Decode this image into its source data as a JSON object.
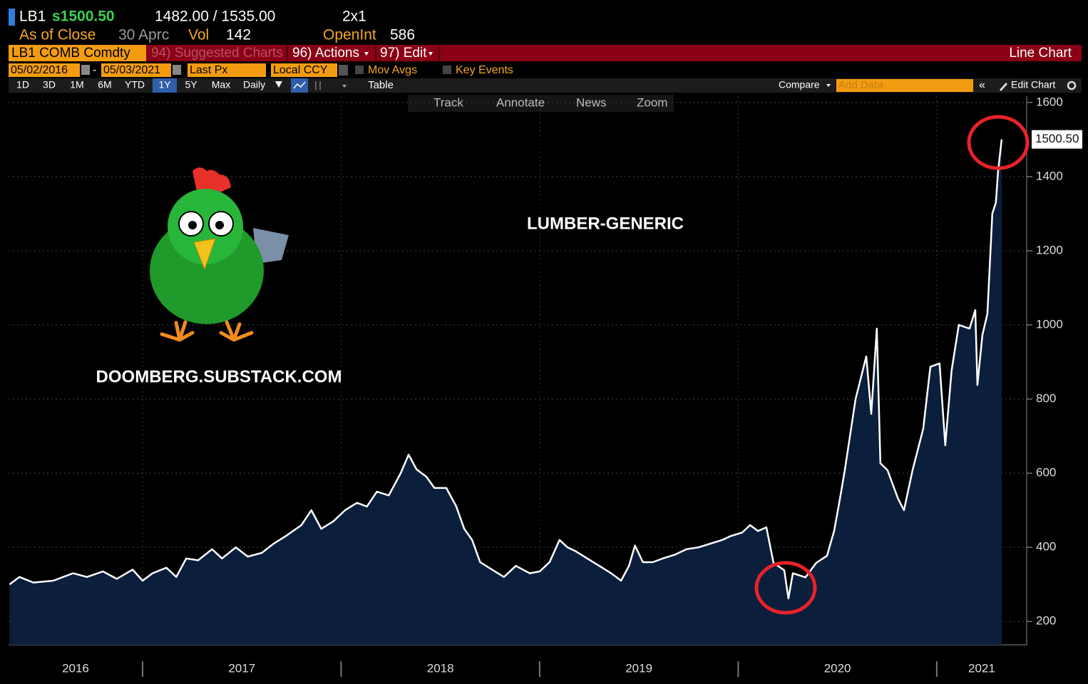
{
  "header": {
    "ticker": "LB1",
    "last": "s1500.50",
    "bid_ask": "1482.00 / 1535.00",
    "size": "2x1",
    "as_of": "As of Close",
    "date": "30 Aprc",
    "vol_label": "Vol",
    "vol": "142",
    "oi_label": "OpenInt",
    "oi": "586"
  },
  "menu": {
    "security": "LB1 COMB Comdty",
    "suggested": "94) Suggested Charts",
    "actions": "96) Actions",
    "edit": "97) Edit",
    "chart_type": "Line Chart"
  },
  "controls": {
    "start": "05/02/2016",
    "end": "05/03/2021",
    "field": "Last Px",
    "currency": "Local CCY",
    "mov_avgs": "Mov Avgs",
    "key_events": "Key Events"
  },
  "toolbar": {
    "periods": [
      "1D",
      "3D",
      "1M",
      "6M",
      "YTD",
      "1Y",
      "5Y",
      "Max"
    ],
    "frequency": "Daily",
    "table": "Table",
    "compare": "Compare",
    "add_data": "Add Data",
    "edit_chart": "Edit Chart"
  },
  "chart_tools": [
    "Track",
    "Annotate",
    "News",
    "Zoom"
  ],
  "chart_data": {
    "type": "area",
    "title": "LUMBER-GENERIC",
    "annotation": "DOOMBERG.SUBSTACK.COM",
    "x": [
      2016.33,
      2016.38,
      2016.45,
      2016.55,
      2016.65,
      2016.72,
      2016.8,
      2016.87,
      2016.95,
      2017.0,
      2017.05,
      2017.12,
      2017.17,
      2017.22,
      2017.28,
      2017.35,
      2017.4,
      2017.47,
      2017.53,
      2017.6,
      2017.66,
      2017.72,
      2017.8,
      2017.85,
      2017.9,
      2017.96,
      2018.02,
      2018.08,
      2018.13,
      2018.18,
      2018.24,
      2018.3,
      2018.34,
      2018.38,
      2018.43,
      2018.47,
      2018.53,
      2018.58,
      2018.62,
      2018.66,
      2018.7,
      2018.76,
      2018.82,
      2018.88,
      2018.95,
      2019.0,
      2019.05,
      2019.1,
      2019.14,
      2019.18,
      2019.24,
      2019.3,
      2019.36,
      2019.41,
      2019.45,
      2019.48,
      2019.52,
      2019.57,
      2019.62,
      2019.68,
      2019.74,
      2019.8,
      2019.86,
      2019.92,
      2019.96,
      2020.02,
      2020.06,
      2020.099,
      2020.142,
      2020.178,
      2020.232,
      2020.253,
      2020.275,
      2020.339,
      2020.393,
      2020.447,
      2020.483,
      2020.512,
      2020.537,
      2020.591,
      2020.645,
      2020.67,
      2020.698,
      2020.716,
      2020.752,
      2020.806,
      2020.835,
      2020.878,
      2020.932,
      2020.968,
      2021.014,
      2021.043,
      2021.075,
      2021.111,
      2021.165,
      2021.194,
      2021.205,
      2021.23,
      2021.255,
      2021.28,
      2021.298,
      2021.309,
      2021.327
    ],
    "values": [
      300,
      320,
      305,
      310,
      330,
      320,
      335,
      315,
      340,
      310,
      330,
      345,
      320,
      370,
      365,
      395,
      370,
      400,
      375,
      385,
      410,
      430,
      460,
      500,
      450,
      470,
      500,
      520,
      510,
      550,
      540,
      600,
      650,
      610,
      590,
      560,
      560,
      510,
      450,
      420,
      360,
      340,
      320,
      350,
      330,
      335,
      360,
      420,
      400,
      390,
      370,
      350,
      330,
      310,
      350,
      405,
      360,
      360,
      370,
      380,
      395,
      400,
      410,
      420,
      430,
      440,
      460,
      444,
      454,
      358,
      338,
      262,
      330,
      319,
      358,
      377,
      444,
      530,
      608,
      800,
      915,
      760,
      990,
      627,
      608,
      530,
      500,
      608,
      720,
      887,
      896,
      675,
      877,
      1000,
      990,
      1040,
      838,
      973,
      1030,
      1300,
      1330,
      1415,
      1500.5
    ],
    "last_value_label": "1500.50",
    "color": "#ffffff",
    "fill": "#0b1e3c",
    "xlim": [
      2016.325,
      2021.453
    ],
    "xticks": [
      2017,
      2018,
      2019,
      2020,
      2021
    ],
    "year_labels": [
      2016,
      2017,
      2018,
      2019,
      2020,
      2021
    ],
    "ylim": [
      137,
      1617
    ],
    "yticks": [
      200,
      400,
      600,
      800,
      1000,
      1200,
      1400,
      1600
    ],
    "grid": true
  }
}
